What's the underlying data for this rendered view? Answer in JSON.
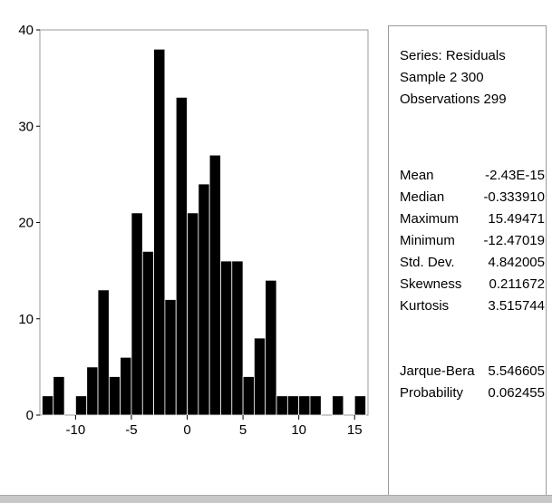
{
  "chart_data": {
    "type": "bar",
    "bin_width": 1,
    "bins": [
      {
        "x0": -13,
        "count": 2
      },
      {
        "x0": -12,
        "count": 4
      },
      {
        "x0": -11,
        "count": 0
      },
      {
        "x0": -10,
        "count": 2
      },
      {
        "x0": -9,
        "count": 5
      },
      {
        "x0": -8,
        "count": 13
      },
      {
        "x0": -7,
        "count": 4
      },
      {
        "x0": -6,
        "count": 6
      },
      {
        "x0": -5,
        "count": 21
      },
      {
        "x0": -4,
        "count": 17
      },
      {
        "x0": -3,
        "count": 38
      },
      {
        "x0": -2,
        "count": 12
      },
      {
        "x0": -1,
        "count": 33
      },
      {
        "x0": 0,
        "count": 21
      },
      {
        "x0": 1,
        "count": 24
      },
      {
        "x0": 2,
        "count": 27
      },
      {
        "x0": 3,
        "count": 16
      },
      {
        "x0": 4,
        "count": 16
      },
      {
        "x0": 5,
        "count": 4
      },
      {
        "x0": 6,
        "count": 8
      },
      {
        "x0": 7,
        "count": 14
      },
      {
        "x0": 8,
        "count": 2
      },
      {
        "x0": 9,
        "count": 2
      },
      {
        "x0": 10,
        "count": 2
      },
      {
        "x0": 11,
        "count": 2
      },
      {
        "x0": 12,
        "count": 0
      },
      {
        "x0": 13,
        "count": 2
      },
      {
        "x0": 14,
        "count": 0
      },
      {
        "x0": 15,
        "count": 2
      }
    ],
    "xlim": [
      -13.2,
      16.2
    ],
    "ylim": [
      0,
      40
    ],
    "xticks": [
      -10,
      -5,
      0,
      5,
      10,
      15
    ],
    "yticks": [
      0,
      10,
      20,
      30,
      40
    ],
    "bar_color": "#000000",
    "bar_edge_color": "#ffffff",
    "grid": false,
    "legend": "none"
  },
  "stats": {
    "series_label": "Series: Residuals",
    "sample_label": "Sample 2 300",
    "observations_label": "Observations 299",
    "rows": [
      {
        "key": "Mean",
        "value": "-2.43E-15"
      },
      {
        "key": "Median",
        "value": "-0.333910"
      },
      {
        "key": "Maximum",
        "value": "15.49471"
      },
      {
        "key": "Minimum",
        "value": "-12.47019"
      },
      {
        "key": "Std. Dev.",
        "value": "4.842005"
      },
      {
        "key": "Skewness",
        "value": "0.211672"
      },
      {
        "key": "Kurtosis",
        "value": "3.515744"
      }
    ],
    "test_rows": [
      {
        "key": "Jarque-Bera",
        "value": "5.546605"
      },
      {
        "key": "Probability",
        "value": "0.062455"
      }
    ]
  }
}
